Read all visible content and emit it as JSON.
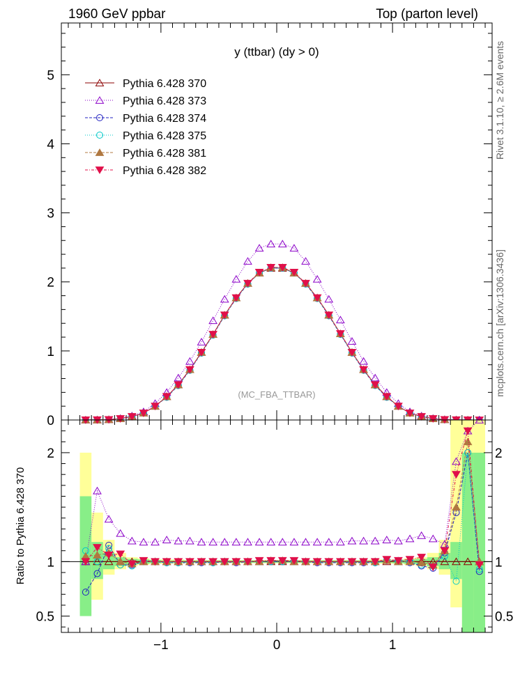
{
  "header": {
    "left": "1960 GeV ppbar",
    "right": "Top (parton level)"
  },
  "side_text": {
    "rivet": "Rivet 3.1.10, ≥ 2.6M events",
    "mcplots": "mcplots.cern.ch [arXiv:1306.3436]"
  },
  "chart_data": [
    {
      "type": "line",
      "panel": "main",
      "title": "y (ttbar) (dy > 0)",
      "watermark": "(MC_FBA_TTBAR)",
      "xlim": [
        -1.86,
        1.86
      ],
      "ylim": [
        0,
        5.75
      ],
      "yticks": [
        "0",
        "1",
        "2",
        "3",
        "4",
        "5"
      ],
      "x": [
        -1.65,
        -1.55,
        -1.45,
        -1.35,
        -1.25,
        -1.15,
        -1.05,
        -0.95,
        -0.85,
        -0.75,
        -0.65,
        -0.55,
        -0.45,
        -0.35,
        -0.25,
        -0.15,
        -0.05,
        0.05,
        0.15,
        0.25,
        0.35,
        0.45,
        0.55,
        0.65,
        0.75,
        0.85,
        0.95,
        1.05,
        1.15,
        1.25,
        1.35,
        1.45,
        1.55,
        1.65,
        1.75
      ],
      "series": [
        {
          "name": "Pythia 6.428 370",
          "color": "#8b0000",
          "marker": "triangle-open",
          "dash": "",
          "values": [
            0.001,
            0.002,
            0.006,
            0.02,
            0.05,
            0.1,
            0.2,
            0.34,
            0.51,
            0.73,
            0.98,
            1.24,
            1.52,
            1.77,
            1.98,
            2.13,
            2.2,
            2.2,
            2.13,
            1.98,
            1.77,
            1.52,
            1.25,
            0.98,
            0.73,
            0.51,
            0.34,
            0.2,
            0.1,
            0.05,
            0.02,
            0.006,
            0.002,
            0.001,
            0.0003
          ]
        },
        {
          "name": "Pythia 6.428 373",
          "color": "#8b00c8",
          "marker": "triangle-open",
          "dash": "1,2",
          "values": [
            0.001,
            0.003,
            0.008,
            0.025,
            0.06,
            0.12,
            0.24,
            0.4,
            0.61,
            0.85,
            1.13,
            1.44,
            1.75,
            2.04,
            2.3,
            2.49,
            2.55,
            2.55,
            2.49,
            2.3,
            2.04,
            1.75,
            1.45,
            1.14,
            0.85,
            0.61,
            0.4,
            0.24,
            0.12,
            0.06,
            0.025,
            0.008,
            0.003,
            0.002,
            0.0004
          ]
        },
        {
          "name": "Pythia 6.428 374",
          "color": "#2020c0",
          "marker": "circle-open",
          "dash": "4,2",
          "values": [
            0.001,
            0.002,
            0.006,
            0.02,
            0.05,
            0.1,
            0.2,
            0.33,
            0.5,
            0.72,
            0.97,
            1.23,
            1.51,
            1.76,
            1.97,
            2.13,
            2.2,
            2.2,
            2.13,
            1.97,
            1.76,
            1.51,
            1.24,
            0.97,
            0.72,
            0.5,
            0.33,
            0.2,
            0.1,
            0.05,
            0.02,
            0.006,
            0.002,
            0.001,
            0.0003
          ]
        },
        {
          "name": "Pythia 6.428 375",
          "color": "#00c8c8",
          "marker": "circle-open",
          "dash": "1,2",
          "values": [
            0.001,
            0.002,
            0.006,
            0.02,
            0.05,
            0.1,
            0.2,
            0.33,
            0.5,
            0.72,
            0.97,
            1.23,
            1.51,
            1.76,
            1.97,
            2.13,
            2.2,
            2.2,
            2.13,
            1.97,
            1.76,
            1.51,
            1.24,
            0.97,
            0.72,
            0.5,
            0.33,
            0.2,
            0.1,
            0.05,
            0.02,
            0.006,
            0.002,
            0.001,
            0.0003
          ]
        },
        {
          "name": "Pythia 6.428 381",
          "color": "#b07840",
          "marker": "triangle-filled",
          "dash": "4,2",
          "values": [
            0.001,
            0.002,
            0.006,
            0.02,
            0.05,
            0.1,
            0.2,
            0.34,
            0.51,
            0.73,
            0.98,
            1.24,
            1.52,
            1.77,
            1.98,
            2.13,
            2.21,
            2.21,
            2.13,
            1.98,
            1.77,
            1.52,
            1.25,
            0.98,
            0.73,
            0.51,
            0.34,
            0.2,
            0.1,
            0.05,
            0.02,
            0.006,
            0.002,
            0.001,
            0.0003
          ]
        },
        {
          "name": "Pythia 6.428 382",
          "color": "#e0104a",
          "marker": "triangle-down-filled",
          "dash": "4,2,1,2",
          "values": [
            0.001,
            0.002,
            0.006,
            0.02,
            0.05,
            0.1,
            0.2,
            0.34,
            0.51,
            0.73,
            0.98,
            1.24,
            1.52,
            1.77,
            1.98,
            2.14,
            2.21,
            2.21,
            2.14,
            1.98,
            1.77,
            1.52,
            1.25,
            0.98,
            0.73,
            0.51,
            0.34,
            0.2,
            0.1,
            0.05,
            0.02,
            0.006,
            0.002,
            0.001,
            0.0003
          ]
        }
      ]
    },
    {
      "type": "line",
      "panel": "ratio",
      "ylabel": "Ratio to Pythia 6.428 370",
      "xlim": [
        -1.86,
        1.86
      ],
      "ylim": [
        0.35,
        2.3
      ],
      "yticks": [
        "0.5",
        "1",
        "2"
      ],
      "xticks": [
        "−1",
        "0",
        "1"
      ],
      "x": [
        -1.65,
        -1.55,
        -1.45,
        -1.35,
        -1.25,
        -1.15,
        -1.05,
        -0.95,
        -0.85,
        -0.75,
        -0.65,
        -0.55,
        -0.45,
        -0.35,
        -0.25,
        -0.15,
        -0.05,
        0.05,
        0.15,
        0.25,
        0.35,
        0.45,
        0.55,
        0.65,
        0.75,
        0.85,
        0.95,
        1.05,
        1.15,
        1.25,
        1.35,
        1.45,
        1.55,
        1.65,
        1.75
      ],
      "band_yellow": {
        "lo": [
          0.65,
          0.65,
          0.88,
          0.93,
          0.96,
          0.97,
          0.98,
          0.98,
          0.98,
          0.985,
          0.985,
          0.985,
          0.985,
          0.985,
          0.985,
          0.985,
          0.985,
          0.985,
          0.985,
          0.985,
          0.985,
          0.985,
          0.985,
          0.985,
          0.985,
          0.98,
          0.98,
          0.98,
          0.97,
          0.96,
          0.93,
          0.88,
          0.58,
          0.35,
          0.35
        ],
        "hi": [
          2.0,
          1.45,
          1.2,
          1.08,
          1.04,
          1.03,
          1.02,
          1.02,
          1.02,
          1.015,
          1.015,
          1.015,
          1.015,
          1.015,
          1.015,
          1.015,
          1.015,
          1.015,
          1.015,
          1.015,
          1.015,
          1.015,
          1.015,
          1.015,
          1.015,
          1.02,
          1.02,
          1.02,
          1.03,
          1.04,
          1.08,
          1.2,
          2.3,
          2.3,
          2.3
        ]
      },
      "band_green": {
        "lo": [
          0.5,
          0.84,
          0.93,
          0.96,
          0.975,
          0.98,
          0.985,
          0.99,
          0.99,
          0.99,
          0.99,
          0.99,
          0.99,
          0.99,
          0.99,
          0.99,
          0.99,
          0.99,
          0.99,
          0.99,
          0.99,
          0.99,
          0.99,
          0.99,
          0.99,
          0.99,
          0.99,
          0.985,
          0.98,
          0.975,
          0.96,
          0.93,
          0.84,
          0.35,
          0.35
        ],
        "hi": [
          1.6,
          1.18,
          1.08,
          1.04,
          1.025,
          1.02,
          1.015,
          1.01,
          1.01,
          1.01,
          1.01,
          1.01,
          1.01,
          1.01,
          1.01,
          1.01,
          1.01,
          1.01,
          1.01,
          1.01,
          1.01,
          1.01,
          1.01,
          1.01,
          1.01,
          1.01,
          1.01,
          1.015,
          1.02,
          1.025,
          1.04,
          1.08,
          1.18,
          2.0,
          2.0
        ]
      },
      "series": [
        {
          "name": "Pythia 6.428 370",
          "color": "#8b0000",
          "marker": "triangle-open",
          "dash": "",
          "values": [
            1,
            1,
            1,
            1,
            1,
            1,
            1,
            1,
            1,
            1,
            1,
            1,
            1,
            1,
            1,
            1,
            1,
            1,
            1,
            1,
            1,
            1,
            1,
            1,
            1,
            1,
            1,
            1,
            1,
            1,
            1,
            1,
            1,
            1,
            1
          ]
        },
        {
          "name": "Pythia 6.428 373",
          "color": "#8b00c8",
          "marker": "triangle-open",
          "dash": "1,2",
          "values": [
            1.0,
            1.65,
            1.39,
            1.26,
            1.19,
            1.18,
            1.18,
            1.2,
            1.19,
            1.19,
            1.18,
            1.18,
            1.18,
            1.18,
            1.18,
            1.18,
            1.18,
            1.18,
            1.18,
            1.18,
            1.18,
            1.18,
            1.18,
            1.19,
            1.19,
            1.19,
            1.2,
            1.19,
            1.21,
            1.24,
            1.21,
            1.16,
            1.92,
            2.2,
            2.3
          ]
        },
        {
          "name": "Pythia 6.428 374",
          "color": "#2020c0",
          "marker": "circle-open",
          "dash": "4,2",
          "values": [
            0.72,
            0.89,
            1.15,
            0.97,
            0.97,
            1.0,
            1.0,
            0.99,
            0.99,
            0.99,
            0.99,
            0.99,
            1.0,
            0.99,
            1.0,
            1.0,
            1.0,
            1.0,
            1.0,
            1.0,
            0.99,
            0.99,
            0.99,
            0.99,
            0.99,
            0.99,
            1.01,
            1.01,
            0.99,
            0.96,
            0.94,
            1.08,
            1.45,
            2.0,
            0.91
          ]
        },
        {
          "name": "Pythia 6.428 375",
          "color": "#00c8c8",
          "marker": "circle-open",
          "dash": "1,2",
          "values": [
            1.1,
            1.0,
            1.12,
            0.97,
            0.96,
            1.0,
            1.0,
            0.99,
            0.99,
            1.0,
            1.0,
            0.99,
            1.0,
            1.0,
            1.0,
            1.0,
            1.0,
            1.0,
            1.0,
            1.0,
            1.0,
            1.0,
            1.0,
            1.0,
            1.0,
            0.99,
            1.01,
            1.0,
            1.0,
            0.97,
            0.96,
            1.05,
            0.82,
            2.0,
            0.93
          ]
        },
        {
          "name": "Pythia 6.428 381",
          "color": "#b07840",
          "marker": "triangle-filled",
          "dash": "4,2",
          "values": [
            1.05,
            1.06,
            1.08,
            1.0,
            0.98,
            1.0,
            1.0,
            1.0,
            1.0,
            1.0,
            1.0,
            1.0,
            1.0,
            1.0,
            1.0,
            1.0,
            1.01,
            1.01,
            1.0,
            1.0,
            1.0,
            1.0,
            1.0,
            1.0,
            1.0,
            1.0,
            1.01,
            1.0,
            1.0,
            0.99,
            0.97,
            1.1,
            1.5,
            2.1,
            1.0
          ]
        },
        {
          "name": "Pythia 6.428 382",
          "color": "#e0104a",
          "marker": "triangle-down-filled",
          "dash": "4,2,1,2",
          "values": [
            1.0,
            1.13,
            1.06,
            1.07,
            0.98,
            1.01,
            1.0,
            1.0,
            1.0,
            1.0,
            1.0,
            1.0,
            1.0,
            1.0,
            1.0,
            1.01,
            1.01,
            1.01,
            1.01,
            1.0,
            1.0,
            1.0,
            1.0,
            1.0,
            1.0,
            1.0,
            1.02,
            1.01,
            1.02,
            1.04,
            0.95,
            1.1,
            1.8,
            2.2,
            0.97
          ]
        }
      ]
    }
  ]
}
